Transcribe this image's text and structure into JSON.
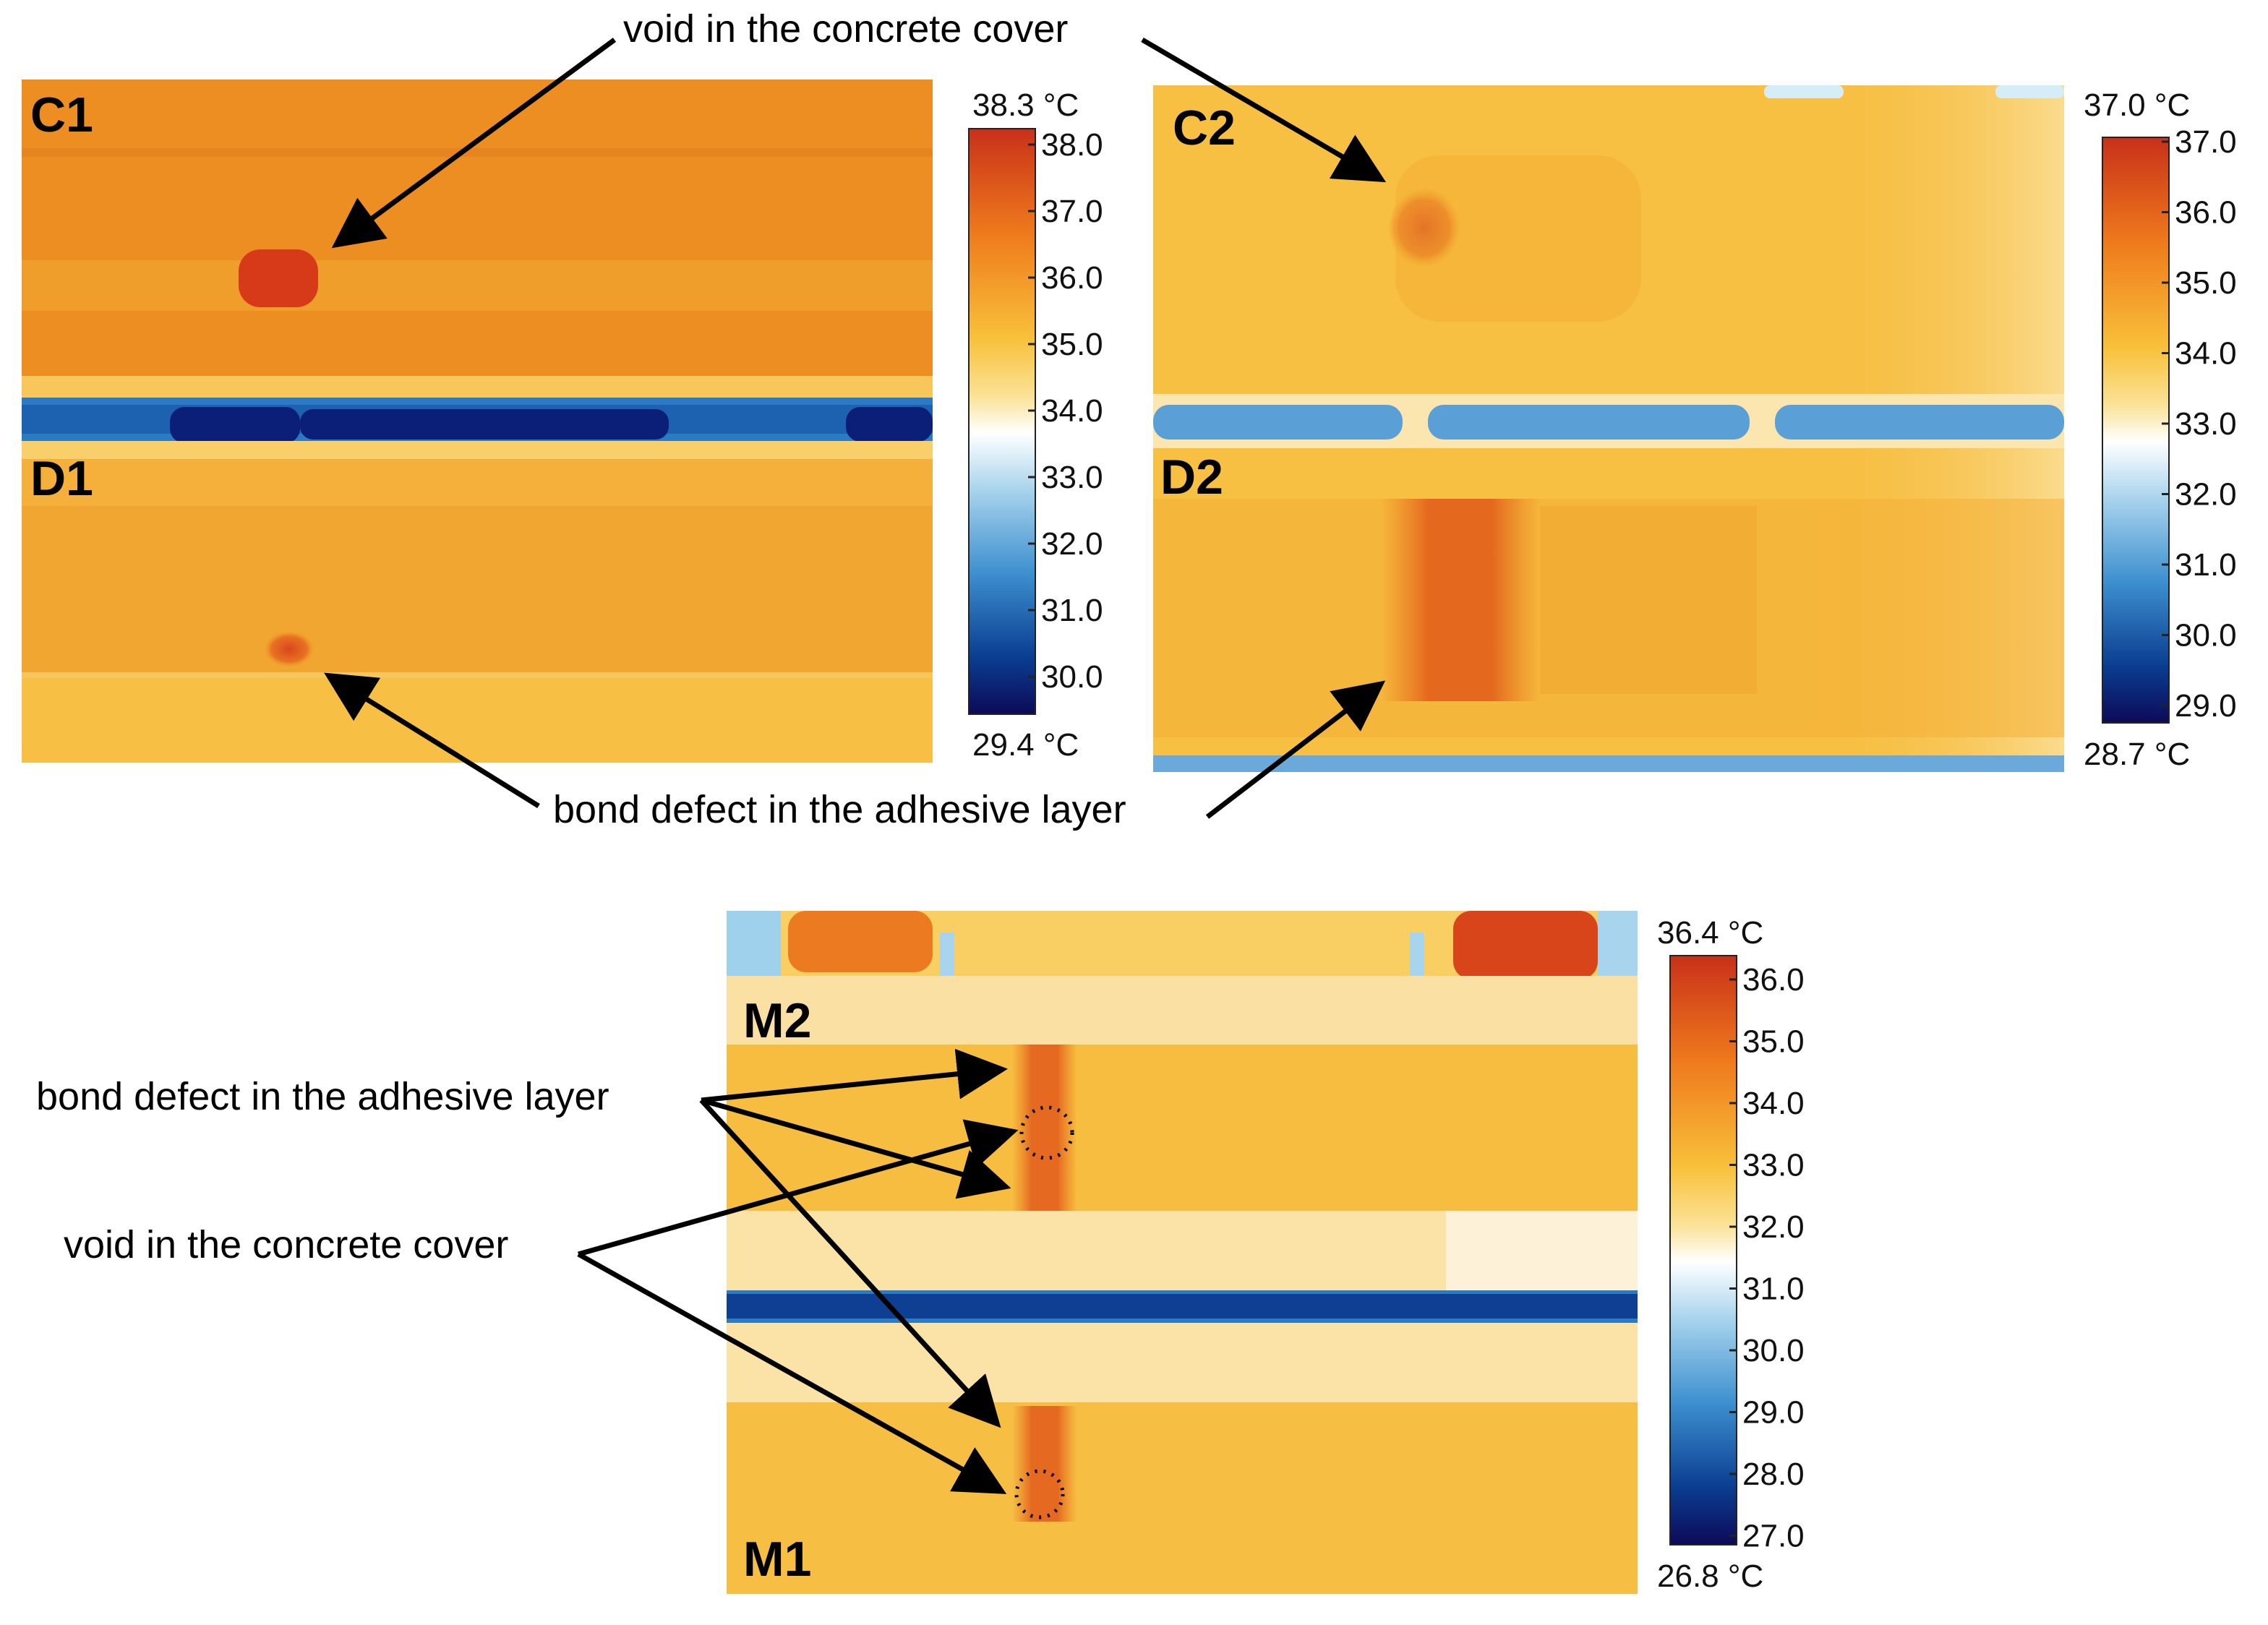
{
  "panels": [
    {
      "label": "C1"
    },
    {
      "label": "D1"
    },
    {
      "label": "C2"
    },
    {
      "label": "D2"
    },
    {
      "label": "M2"
    },
    {
      "label": "M1"
    }
  ],
  "annotations": {
    "void_top": "void in the concrete cover",
    "bond_top": "bond defect in the adhesive layer",
    "bond_bottom": "bond defect in the adhesive layer",
    "void_bottom": "void in the concrete cover"
  },
  "colorbars": [
    {
      "max_label": "38.3 °C",
      "min_label": "29.4 °C",
      "ticks": [
        "38.0",
        "37.0",
        "36.0",
        "35.0",
        "34.0",
        "33.0",
        "32.0",
        "31.0",
        "30.0"
      ]
    },
    {
      "max_label": "37.0 °C",
      "min_label": "28.7 °C",
      "ticks": [
        "37.0",
        "36.0",
        "35.0",
        "34.0",
        "33.0",
        "32.0",
        "31.0",
        "30.0",
        "29.0"
      ]
    },
    {
      "max_label": "36.4 °C",
      "min_label": "26.8 °C",
      "ticks": [
        "36.0",
        "35.0",
        "34.0",
        "33.0",
        "32.0",
        "31.0",
        "30.0",
        "29.0",
        "28.0",
        "27.0"
      ]
    }
  ],
  "colors": {
    "hot": "#c8301a",
    "warm": "#ef8a1c",
    "mid": "#f8c13a",
    "neutral": "#ffffff",
    "cool": "#4a9ad4",
    "cold": "#0b3f92",
    "coldest": "#0c0a58"
  }
}
